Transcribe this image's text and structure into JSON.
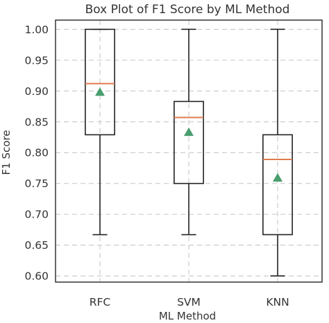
{
  "chart_data": {
    "type": "box",
    "title": "Box Plot of F1 Score by ML Method",
    "xlabel": "ML Method",
    "ylabel": "F1 Score",
    "ylim": [
      0.59,
      1.015
    ],
    "yticks": [
      "0.60",
      "0.65",
      "0.70",
      "0.75",
      "0.80",
      "0.85",
      "0.90",
      "0.95",
      "1.00"
    ],
    "grid": true,
    "colors": {
      "box": "#222222",
      "median": "#e07b4f",
      "mean_marker": "#4a9e6f",
      "grid": "#cccccc",
      "frame": "#333333"
    },
    "categories": [
      "RFC",
      "SVM",
      "KNN"
    ],
    "boxes": [
      {
        "label": "RFC",
        "whisker_low": 0.667,
        "q1": 0.829,
        "median": 0.912,
        "q3": 1.0,
        "whisker_high": 1.0,
        "mean": 0.898
      },
      {
        "label": "SVM",
        "whisker_low": 0.667,
        "q1": 0.75,
        "median": 0.857,
        "q3": 0.883,
        "whisker_high": 1.0,
        "mean": 0.833
      },
      {
        "label": "KNN",
        "whisker_low": 0.6,
        "q1": 0.667,
        "median": 0.789,
        "q3": 0.829,
        "whisker_high": 1.0,
        "mean": 0.759
      }
    ]
  }
}
